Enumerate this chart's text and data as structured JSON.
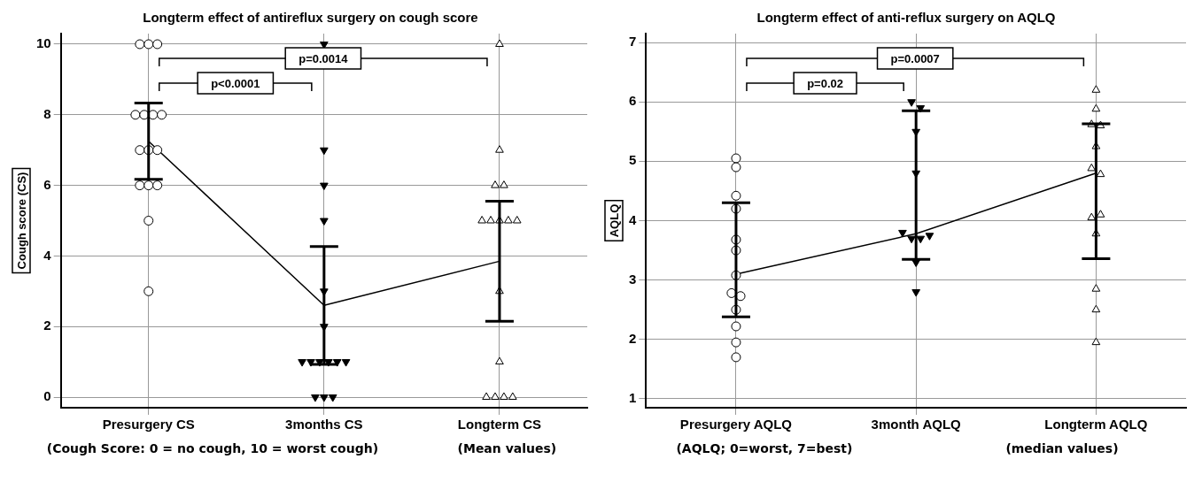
{
  "chart_data": [
    {
      "type": "scatter",
      "title": "Longterm effect of antireflux surgery on cough score",
      "ylabel": "Cough score (CS)",
      "categories": [
        "Presurgery CS",
        "3months CS",
        "Longterm CS"
      ],
      "ylim": [
        -0.3,
        10.3
      ],
      "yticks": [
        0,
        2,
        4,
        6,
        8,
        10
      ],
      "grid": true,
      "annotations": [
        "p<0.0001",
        "p=0.0014",
        "(Cough Score: 0 = no cough, 10 = worst cough)",
        "(Mean values)"
      ],
      "series": [
        {
          "color": "#000000",
          "marker": "circle",
          "x": [
            "Presurgery CS",
            "Presurgery CS",
            "Presurgery CS",
            "Presurgery CS",
            "Presurgery CS",
            "Presurgery CS",
            "Presurgery CS",
            "Presurgery CS",
            "Presurgery CS",
            "Presurgery CS",
            "Presurgery CS",
            "Presurgery CS",
            "Presurgery CS",
            "Presurgery CS",
            "Presurgery CS"
          ],
          "values": [
            10,
            10,
            10,
            8,
            8,
            8,
            8,
            7,
            7,
            7,
            6,
            6,
            6,
            5,
            3
          ]
        },
        {
          "color": "#000000",
          "marker": "triangle",
          "x": [
            "3months CS",
            "3months CS",
            "3months CS",
            "3months CS",
            "3months CS",
            "3months CS",
            "3months CS",
            "3months CS",
            "3months CS",
            "3months CS",
            "3months CS",
            "3months CS",
            "3months CS",
            "3months CS",
            "3months CS"
          ],
          "values": [
            10,
            7,
            6,
            5,
            3,
            2,
            1,
            1,
            1,
            1,
            1,
            1,
            0,
            0,
            0
          ]
        },
        {
          "color": "#000000",
          "marker": "triangle",
          "x": [
            "Longterm CS",
            "Longterm CS",
            "Longterm CS",
            "Longterm CS",
            "Longterm CS",
            "Longterm CS",
            "Longterm CS",
            "Longterm CS",
            "Longterm CS",
            "Longterm CS",
            "Longterm CS",
            "Longterm CS",
            "Longterm CS",
            "Longterm CS",
            "Longterm CS"
          ],
          "values": [
            10,
            7,
            6,
            6,
            5,
            5,
            5,
            5,
            5,
            3,
            1,
            0,
            0,
            0,
            0
          ]
        },
        {
          "type": "line",
          "color": "#000000",
          "marker": "none",
          "values": [
            7.25,
            2.6,
            3.85
          ],
          "errors": [
            [
              6.17,
              8.33
            ],
            [
              0.93,
              4.27
            ],
            [
              2.15,
              5.55
            ]
          ]
        }
      ]
    },
    {
      "type": "scatter",
      "title": "Longterm effect of anti-reflux surgery on AQLQ",
      "ylabel": "AQLQ",
      "categories": [
        "Presurgery AQLQ",
        "3month AQLQ",
        "Longterm AQLQ"
      ],
      "ylim": [
        0.85,
        7.15
      ],
      "yticks": [
        1,
        2,
        3,
        4,
        5,
        6,
        7
      ],
      "grid": true,
      "annotations": [
        "p=0.02",
        "p=0.0007",
        "(AQLQ; 0=worst, 7=best)",
        "(median values)"
      ],
      "series": [
        {
          "color": "#000000",
          "marker": "circle",
          "x": [
            "Presurgery AQLQ",
            "Presurgery AQLQ",
            "Presurgery AQLQ",
            "Presurgery AQLQ",
            "Presurgery AQLQ",
            "Presurgery AQLQ",
            "Presurgery AQLQ",
            "Presurgery AQLQ",
            "Presurgery AQLQ",
            "Presurgery AQLQ",
            "Presurgery AQLQ",
            "Presurgery AQLQ",
            "Presurgery AQLQ"
          ],
          "values": [
            5.05,
            4.9,
            4.42,
            4.2,
            3.68,
            3.5,
            3.08,
            2.78,
            2.73,
            2.5,
            2.22,
            1.95,
            1.7
          ]
        },
        {
          "color": "#000000",
          "marker": "triangle",
          "x": [
            "3month AQLQ",
            "3month AQLQ",
            "3month AQLQ",
            "3month AQLQ",
            "3month AQLQ",
            "3month AQLQ",
            "3month AQLQ",
            "3month AQLQ",
            "3month AQLQ",
            "3month AQLQ"
          ],
          "values": [
            6.0,
            5.9,
            5.5,
            4.8,
            3.8,
            3.7,
            3.7,
            3.3,
            2.8,
            3.75
          ]
        },
        {
          "color": "#000000",
          "marker": "triangle",
          "x": [
            "Longterm AQLQ",
            "Longterm AQLQ",
            "Longterm AQLQ",
            "Longterm AQLQ",
            "Longterm AQLQ",
            "Longterm AQLQ",
            "Longterm AQLQ",
            "Longterm AQLQ",
            "Longterm AQLQ",
            "Longterm AQLQ",
            "Longterm AQLQ",
            "Longterm AQLQ",
            "Longterm AQLQ"
          ],
          "values": [
            6.2,
            5.88,
            5.62,
            5.6,
            5.25,
            4.88,
            4.78,
            4.05,
            4.1,
            3.78,
            2.85,
            2.5,
            1.95
          ]
        },
        {
          "type": "line",
          "color": "#000000",
          "marker": "none",
          "values": [
            3.1,
            3.78,
            4.8
          ],
          "errors": [
            [
              2.38,
              4.3
            ],
            [
              3.35,
              5.85
            ],
            [
              3.36,
              5.63
            ]
          ]
        }
      ]
    }
  ]
}
